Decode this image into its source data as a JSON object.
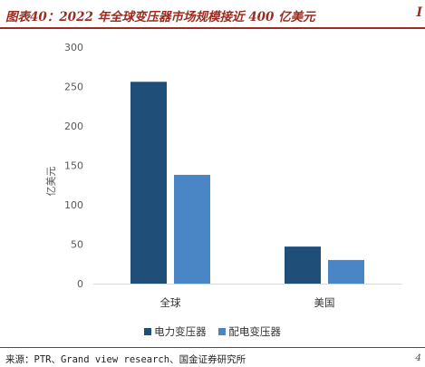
{
  "figure": {
    "title": "图表40：2022 年全球变压器市场规模接近 400 亿美元",
    "source": "来源：PTR、Grand view research、国金证券研究所",
    "edge_mark": "I",
    "source_edge_mark": "4"
  },
  "chart_data": {
    "type": "bar",
    "title": "",
    "xlabel": "",
    "ylabel": "亿美元",
    "categories": [
      "全球",
      "美国"
    ],
    "series": [
      {
        "name": "电力变压器",
        "values": [
          256,
          47
        ],
        "color": "#1f4e79"
      },
      {
        "name": "配电变压器",
        "values": [
          138,
          30
        ],
        "color": "#4a86c5"
      }
    ],
    "ylim": [
      0,
      300
    ],
    "yticks": [
      0,
      50,
      100,
      150,
      200,
      250,
      300
    ],
    "grid": false,
    "legend": "bottom"
  }
}
